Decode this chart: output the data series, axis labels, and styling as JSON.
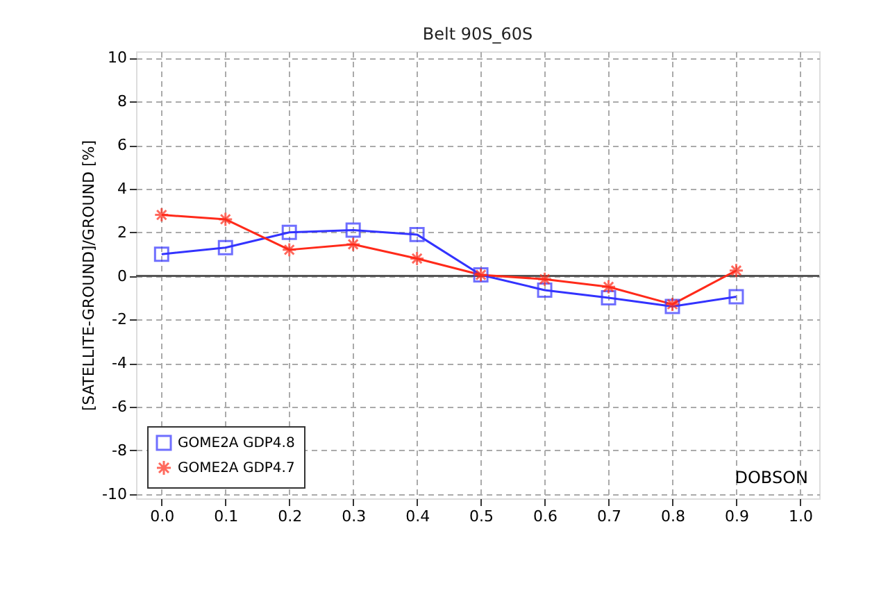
{
  "chart_data": {
    "type": "line",
    "title": "Belt  90S_60S",
    "ylabel": "[SATELLITE-GROUND]/GROUND  [%]",
    "x": [
      0.0,
      0.1,
      0.2,
      0.3,
      0.4,
      0.5,
      0.6,
      0.7,
      0.8,
      0.9
    ],
    "series": [
      {
        "name": "GOME2A GDP4.8",
        "color": "#3333ff",
        "marker": "square",
        "values": [
          1.0,
          1.3,
          2.0,
          2.1,
          1.9,
          0.05,
          -0.65,
          -1.0,
          -1.4,
          -0.95
        ]
      },
      {
        "name": "GOME2A GDP4.7",
        "color": "#ff2a1a",
        "marker": "cross",
        "values": [
          2.8,
          2.6,
          1.2,
          1.45,
          0.8,
          0.05,
          -0.15,
          -0.5,
          -1.3,
          0.25
        ]
      }
    ],
    "xlim": [
      -0.04,
      1.03
    ],
    "ylim": [
      -10.2,
      10.3
    ],
    "xticks": [
      {
        "value": 0,
        "label": "0.0"
      },
      0.1,
      0.2,
      0.3,
      0.4,
      0.5,
      0.6,
      0.7,
      0.8,
      0.9,
      {
        "value": 1,
        "label": "1.0"
      }
    ],
    "yticks": [
      -10,
      -8,
      -6,
      -4,
      -2,
      0,
      2,
      4,
      6,
      8,
      10
    ],
    "ref_lines": [
      {
        "axis": "y",
        "value": 0,
        "color": "#555555"
      }
    ],
    "annotations": [
      "DOBSON"
    ],
    "grid": true,
    "legend": "bottom left",
    "line_style": "solid"
  }
}
